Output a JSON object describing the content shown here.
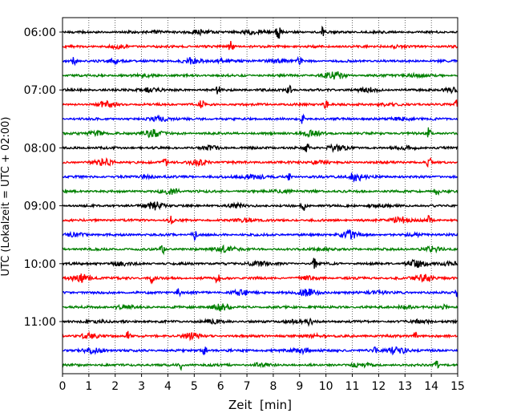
{
  "chart_data": {
    "type": "line",
    "title": "",
    "xlabel": "Zeit  [min]",
    "ylabel": "UTC (Lokalzeit = UTC + 02:00)",
    "xlim": [
      0,
      15
    ],
    "x_ticks": [
      "0",
      "1",
      "2",
      "3",
      "4",
      "5",
      "6",
      "7",
      "8",
      "9",
      "10",
      "11",
      "12",
      "13",
      "14",
      "15"
    ],
    "y_ticks": [
      "06:00",
      "07:00",
      "08:00",
      "09:00",
      "10:00",
      "11:00"
    ],
    "grid": "vertical dotted lines at each minute",
    "traces_per_hour": 4,
    "trace_minutes": 15,
    "series": [
      {
        "start": "06:00",
        "color": "#000000",
        "bursts": [
          [
            8.2,
            0.9
          ],
          [
            9.85,
            0.6
          ],
          [
            5.3,
            0.35
          ],
          [
            7.3,
            0.3
          ],
          [
            3.5,
            0.15
          ]
        ]
      },
      {
        "start": "06:15",
        "color": "#ff0000",
        "bursts": [
          [
            6.4,
            0.8
          ],
          [
            2.1,
            0.15
          ],
          [
            12.5,
            0.15
          ]
        ]
      },
      {
        "start": "06:30",
        "color": "#0000ff",
        "bursts": [
          [
            0.45,
            0.7
          ],
          [
            9.0,
            0.7
          ],
          [
            4.9,
            0.35
          ],
          [
            2.0,
            0.2
          ],
          [
            6.1,
            0.2
          ],
          [
            8.2,
            0.2
          ]
        ]
      },
      {
        "start": "06:45",
        "color": "#008000",
        "bursts": [
          [
            10.3,
            0.5
          ],
          [
            3.2,
            0.1
          ],
          [
            13.3,
            0.15
          ]
        ]
      },
      {
        "start": "07:00",
        "color": "#000000",
        "bursts": [
          [
            8.6,
            0.7
          ],
          [
            5.9,
            0.55
          ],
          [
            3.3,
            0.3
          ],
          [
            14.8,
            0.3
          ],
          [
            11.6,
            0.25
          ]
        ]
      },
      {
        "start": "07:15",
        "color": "#ff0000",
        "bursts": [
          [
            5.3,
            0.8
          ],
          [
            10.0,
            0.6
          ],
          [
            15.0,
            0.9
          ],
          [
            1.7,
            0.35
          ],
          [
            12.2,
            0.15
          ]
        ]
      },
      {
        "start": "07:30",
        "color": "#0000ff",
        "bursts": [
          [
            9.1,
            0.6
          ],
          [
            3.7,
            0.3
          ],
          [
            12.9,
            0.2
          ]
        ]
      },
      {
        "start": "07:45",
        "color": "#008000",
        "bursts": [
          [
            13.9,
            0.8
          ],
          [
            3.4,
            0.5
          ],
          [
            9.4,
            0.3
          ],
          [
            1.3,
            0.25
          ]
        ]
      },
      {
        "start": "08:00",
        "color": "#000000",
        "bursts": [
          [
            9.25,
            0.7
          ],
          [
            10.4,
            0.4
          ],
          [
            5.6,
            0.2
          ],
          [
            13.1,
            0.15
          ]
        ]
      },
      {
        "start": "08:15",
        "color": "#ff0000",
        "bursts": [
          [
            3.9,
            0.8
          ],
          [
            13.9,
            0.8
          ],
          [
            1.6,
            0.4
          ],
          [
            5.2,
            0.35
          ],
          [
            9.7,
            0.2
          ]
        ]
      },
      {
        "start": "08:30",
        "color": "#0000ff",
        "bursts": [
          [
            8.6,
            0.55
          ],
          [
            11.1,
            0.5
          ],
          [
            7.2,
            0.35
          ],
          [
            3.2,
            0.15
          ]
        ]
      },
      {
        "start": "08:45",
        "color": "#008000",
        "bursts": [
          [
            14.2,
            0.75
          ],
          [
            4.1,
            0.35
          ],
          [
            8.3,
            0.2
          ]
        ]
      },
      {
        "start": "09:00",
        "color": "#000000",
        "bursts": [
          [
            3.5,
            0.5
          ],
          [
            9.15,
            0.6
          ],
          [
            6.6,
            0.2
          ],
          [
            12.0,
            0.15
          ]
        ]
      },
      {
        "start": "09:15",
        "color": "#ff0000",
        "bursts": [
          [
            4.1,
            0.75
          ],
          [
            13.9,
            0.55
          ],
          [
            12.8,
            0.45
          ],
          [
            7.0,
            0.2
          ]
        ]
      },
      {
        "start": "09:30",
        "color": "#0000ff",
        "bursts": [
          [
            5.0,
            0.8
          ],
          [
            10.9,
            0.5
          ],
          [
            0.5,
            0.2
          ],
          [
            13.4,
            0.15
          ]
        ]
      },
      {
        "start": "09:45",
        "color": "#008000",
        "bursts": [
          [
            3.8,
            0.7
          ],
          [
            6.2,
            0.4
          ],
          [
            14.0,
            0.3
          ],
          [
            9.8,
            0.15
          ]
        ]
      },
      {
        "start": "10:00",
        "color": "#000000",
        "bursts": [
          [
            9.55,
            0.75
          ],
          [
            13.4,
            0.45
          ],
          [
            7.4,
            0.3
          ],
          [
            2.2,
            0.2
          ],
          [
            14.7,
            0.25
          ]
        ]
      },
      {
        "start": "10:15",
        "color": "#ff0000",
        "bursts": [
          [
            5.9,
            0.8
          ],
          [
            3.4,
            0.55
          ],
          [
            0.75,
            0.5
          ],
          [
            13.8,
            0.5
          ],
          [
            9.3,
            0.2
          ]
        ]
      },
      {
        "start": "10:30",
        "color": "#0000ff",
        "bursts": [
          [
            4.4,
            0.75
          ],
          [
            15.0,
            0.75
          ],
          [
            9.35,
            0.5
          ],
          [
            6.8,
            0.3
          ],
          [
            11.8,
            0.2
          ]
        ]
      },
      {
        "start": "10:45",
        "color": "#008000",
        "bursts": [
          [
            14.5,
            0.6
          ],
          [
            6.0,
            0.4
          ],
          [
            2.3,
            0.2
          ],
          [
            13.0,
            0.2
          ]
        ]
      },
      {
        "start": "11:00",
        "color": "#000000",
        "bursts": [
          [
            9.4,
            0.55
          ],
          [
            8.8,
            0.2
          ],
          [
            5.7,
            0.2
          ],
          [
            13.6,
            0.2
          ],
          [
            1.3,
            0.15
          ]
        ]
      },
      {
        "start": "11:15",
        "color": "#ff0000",
        "bursts": [
          [
            2.5,
            0.7
          ],
          [
            4.9,
            0.4
          ],
          [
            13.4,
            0.55
          ],
          [
            1.0,
            0.3
          ],
          [
            9.6,
            0.2
          ]
        ]
      },
      {
        "start": "11:30",
        "color": "#0000ff",
        "bursts": [
          [
            5.4,
            0.6
          ],
          [
            11.9,
            0.65
          ],
          [
            12.7,
            0.5
          ],
          [
            1.2,
            0.3
          ],
          [
            9.1,
            0.35
          ]
        ]
      },
      {
        "start": "11:45",
        "color": "#008000",
        "bursts": [
          [
            4.5,
            0.55
          ],
          [
            14.2,
            0.55
          ],
          [
            7.5,
            0.2
          ],
          [
            11.3,
            0.2
          ]
        ]
      }
    ]
  }
}
